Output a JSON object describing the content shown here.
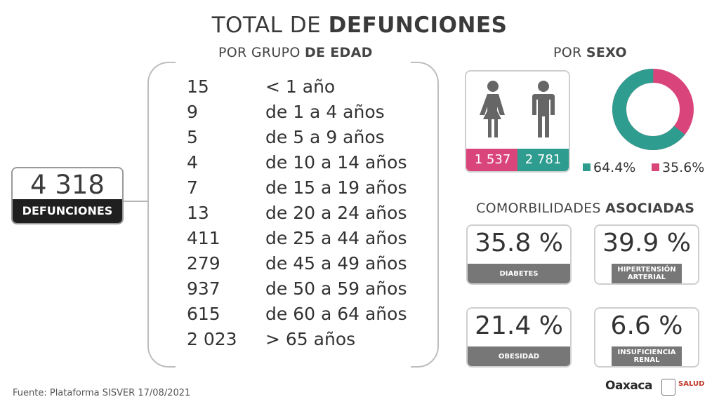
{
  "header": {
    "title_light": "TOTAL DE",
    "title_bold": "DEFUNCIONES"
  },
  "age": {
    "subtitle_light": "POR GRUPO",
    "subtitle_bold": "DE EDAD",
    "rows": [
      {
        "count": "15",
        "range": "< 1 año"
      },
      {
        "count": "9",
        "range": "de 1 a 4 años"
      },
      {
        "count": "5",
        "range": "de 5 a 9 años"
      },
      {
        "count": "4",
        "range": "de 10 a 14 años"
      },
      {
        "count": "7",
        "range": "de 15 a 19 años"
      },
      {
        "count": "13",
        "range": "de 20 a 24 años"
      },
      {
        "count": "411",
        "range": "de 25 a 44 años"
      },
      {
        "count": "279",
        "range": "de 45 a 49 años"
      },
      {
        "count": "937",
        "range": "de 50 a 59 años"
      },
      {
        "count": "615",
        "range": "de 60 a 64 años"
      },
      {
        "count": "2 023",
        "range": "> 65 años"
      }
    ]
  },
  "total": {
    "value": "4 318",
    "label": "DEFUNCIONES"
  },
  "sex": {
    "subtitle_light": "POR",
    "subtitle_bold": "SEXO",
    "female_count": "1 537",
    "male_count": "2 781",
    "male_pct": "64.4%",
    "female_pct": "35.6%",
    "male_fraction": 0.644,
    "female_fraction": 0.356,
    "female_color": "#d9457a",
    "male_color": "#2e9c8f",
    "female_icon": "woman-icon",
    "male_icon": "man-icon"
  },
  "comorbidities": {
    "subtitle_light": "COMORBILIDADES",
    "subtitle_bold": "ASOCIADAS",
    "items": [
      {
        "value": "35.8 %",
        "label": "DIABETES"
      },
      {
        "value": "39.9 %",
        "label": "HIPERTENSIÓN ARTERIAL"
      },
      {
        "value": "21.4 %",
        "label": "OBESIDAD"
      },
      {
        "value": "6.6 %",
        "label": "INSUFICIENCIA RENAL"
      }
    ]
  },
  "footer": {
    "source": "Fuente: Plataforma SISVER 17/08/2021",
    "logo_oaxaca": "Oaxaca",
    "logo_salud": "SALUD"
  }
}
